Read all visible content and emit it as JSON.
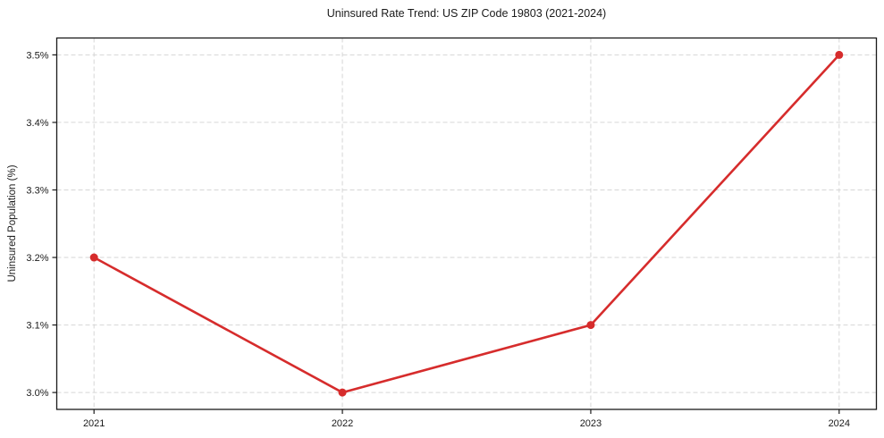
{
  "chart_data": {
    "type": "line",
    "title": "Uninsured Rate Trend: US ZIP Code 19803 (2021-2024)",
    "xlabel": "",
    "ylabel": "Uninsured Population (%)",
    "x": [
      2021,
      2022,
      2023,
      2024
    ],
    "values": [
      3.2,
      3.0,
      3.1,
      3.5
    ],
    "xtick_labels": [
      "2021",
      "2022",
      "2023",
      "2024"
    ],
    "yticks": [
      3.0,
      3.1,
      3.2,
      3.3,
      3.4,
      3.5
    ],
    "ytick_labels": [
      "3.0%",
      "3.1%",
      "3.2%",
      "3.3%",
      "3.4%",
      "3.5%"
    ],
    "xlim": [
      2020.85,
      2024.15
    ],
    "ylim": [
      2.975,
      3.525
    ],
    "grid": true,
    "grid_style": "dashed",
    "legend": "none",
    "colors": {
      "line": "#d62c2c",
      "marker": "#d62c2c",
      "grid": "#d6d6d6",
      "spine": "#1a1a1a",
      "text": "#1a1a1a",
      "background": "#ffffff"
    }
  }
}
